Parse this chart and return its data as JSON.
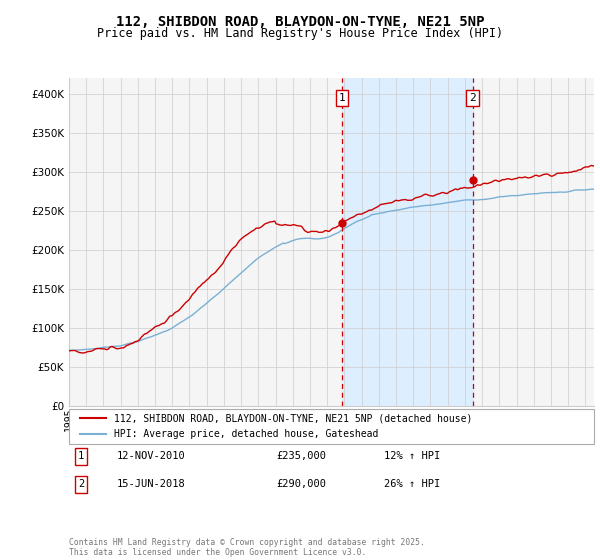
{
  "title_line1": "112, SHIBDON ROAD, BLAYDON-ON-TYNE, NE21 5NP",
  "title_line2": "Price paid vs. HM Land Registry's House Price Index (HPI)",
  "legend_label1": "112, SHIBDON ROAD, BLAYDON-ON-TYNE, NE21 5NP (detached house)",
  "legend_label2": "HPI: Average price, detached house, Gateshead",
  "sale1_label": "1",
  "sale1_date": "12-NOV-2010",
  "sale1_price": "£235,000",
  "sale1_hpi": "12% ↑ HPI",
  "sale2_label": "2",
  "sale2_date": "15-JUN-2018",
  "sale2_price": "£290,000",
  "sale2_hpi": "26% ↑ HPI",
  "footer": "Contains HM Land Registry data © Crown copyright and database right 2025.\nThis data is licensed under the Open Government Licence v3.0.",
  "red_color": "#cc0000",
  "blue_color": "#7ab0d4",
  "shade_color": "#ddeeff",
  "grid_color": "#cccccc",
  "bg_color": "#f5f5f5",
  "ylim": [
    0,
    420000
  ],
  "xlim_start": 1995.0,
  "xlim_end": 2025.5,
  "sale1_x": 2010.87,
  "sale2_x": 2018.45,
  "sale1_y": 235000,
  "sale2_y": 290000
}
